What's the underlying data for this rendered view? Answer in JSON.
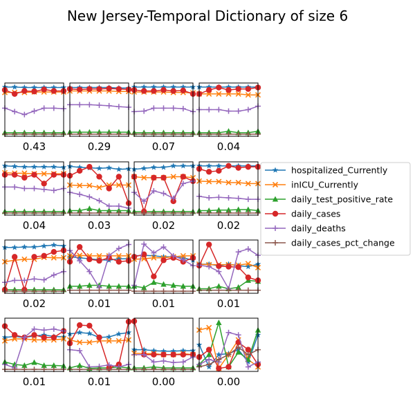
{
  "chart_data": {
    "type": "line",
    "title": "New Jersey-Temporal Dictionary of size 6",
    "series_styles": [
      {
        "name": "hospitalized_Currently",
        "color": "#1f77b4",
        "marker": "star"
      },
      {
        "name": "inICU_Currently",
        "color": "#ff7f0e",
        "marker": "x"
      },
      {
        "name": "daily_test_positive_rate",
        "color": "#2ca02c",
        "marker": "triangle"
      },
      {
        "name": "daily_cases",
        "color": "#d62728",
        "marker": "circle"
      },
      {
        "name": "daily_deaths",
        "color": "#9467bd",
        "marker": "plus"
      },
      {
        "name": "daily_cases_pct_change",
        "color": "#8c564b",
        "marker": "plus"
      }
    ],
    "legend": {
      "placement": "right",
      "entries": [
        "hospitalized_Currently",
        "inICU_Currently",
        "daily_test_positive_rate",
        "daily_cases",
        "daily_deaths",
        "daily_cases_pct_change"
      ]
    },
    "x": [
      0,
      1,
      2,
      3,
      4,
      5,
      6
    ],
    "ylim": [
      0,
      1
    ],
    "panels": [
      {
        "label": "0.43",
        "series": [
          [
            0.96,
            0.96,
            0.95,
            0.95,
            0.95,
            0.95,
            0.95
          ],
          [
            0.85,
            0.85,
            0.85,
            0.86,
            0.86,
            0.86,
            0.86
          ],
          [
            0.03,
            0.03,
            0.03,
            0.03,
            0.03,
            0.03,
            0.03
          ],
          [
            0.9,
            0.82,
            0.88,
            0.87,
            0.91,
            0.88,
            0.88
          ],
          [
            0.53,
            0.46,
            0.4,
            0.47,
            0.53,
            0.53,
            0.52
          ],
          [
            0.0,
            0.0,
            0.0,
            0.0,
            0.0,
            0.0,
            0.0
          ]
        ]
      },
      {
        "label": "0.29",
        "series": [
          [
            0.95,
            0.95,
            0.95,
            0.95,
            0.95,
            0.94,
            0.94
          ],
          [
            0.88,
            0.88,
            0.88,
            0.88,
            0.88,
            0.87,
            0.87
          ],
          [
            0.04,
            0.04,
            0.04,
            0.04,
            0.04,
            0.04,
            0.04
          ],
          [
            0.92,
            0.91,
            0.92,
            0.92,
            0.93,
            0.92,
            0.91
          ],
          [
            0.6,
            0.6,
            0.6,
            0.59,
            0.58,
            0.56,
            0.55
          ],
          [
            0.0,
            0.0,
            0.0,
            0.0,
            0.0,
            0.0,
            0.0
          ]
        ]
      },
      {
        "label": "0.07",
        "series": [
          [
            0.96,
            0.96,
            0.96,
            0.96,
            0.96,
            0.96,
            0.96
          ],
          [
            0.86,
            0.86,
            0.86,
            0.86,
            0.85,
            0.85,
            0.84
          ],
          [
            0.03,
            0.03,
            0.03,
            0.03,
            0.03,
            0.03,
            0.03
          ],
          [
            0.9,
            0.88,
            0.88,
            0.9,
            0.88,
            0.89,
            0.82
          ],
          [
            0.46,
            0.47,
            0.53,
            0.53,
            0.53,
            0.52,
            0.46
          ],
          [
            0.0,
            0.0,
            0.0,
            0.0,
            0.0,
            0.0,
            0.0
          ]
        ]
      },
      {
        "label": "0.04",
        "series": [
          [
            0.96,
            0.96,
            0.96,
            0.96,
            0.96,
            0.96,
            0.96
          ],
          [
            0.82,
            0.82,
            0.82,
            0.82,
            0.82,
            0.8,
            0.8
          ],
          [
            0.03,
            0.03,
            0.03,
            0.06,
            0.03,
            0.03,
            0.06
          ],
          [
            0.82,
            0.9,
            0.95,
            0.9,
            0.92,
            0.92,
            0.95
          ],
          [
            0.5,
            0.5,
            0.5,
            0.47,
            0.47,
            0.5,
            0.57
          ],
          [
            0.0,
            0.0,
            0.0,
            0.0,
            0.0,
            0.0,
            0.0
          ]
        ]
      },
      {
        "label": "0.04",
        "series": [
          [
            0.96,
            0.95,
            0.94,
            0.94,
            0.94,
            0.94,
            0.93
          ],
          [
            0.82,
            0.81,
            0.81,
            0.8,
            0.8,
            0.8,
            0.8
          ],
          [
            0.03,
            0.03,
            0.03,
            0.03,
            0.03,
            0.03,
            0.03
          ],
          [
            0.78,
            0.78,
            0.72,
            0.78,
            0.6,
            0.78,
            0.78
          ],
          [
            0.53,
            0.53,
            0.5,
            0.5,
            0.48,
            0.46,
            0.5
          ],
          [
            0.0,
            0.0,
            0.0,
            0.0,
            0.0,
            0.0,
            0.0
          ]
        ]
      },
      {
        "label": "0.03",
        "series": [
          [
            0.95,
            0.93,
            0.92,
            0.91,
            0.92,
            0.89,
            0.9
          ],
          [
            0.57,
            0.56,
            0.56,
            0.52,
            0.57,
            0.57,
            0.57
          ],
          [
            0.05,
            0.05,
            0.09,
            0.05,
            0.05,
            0.05,
            0.05
          ],
          [
            0.76,
            0.86,
            0.94,
            0.74,
            0.5,
            0.74,
            0.2
          ],
          [
            0.42,
            0.38,
            0.33,
            0.25,
            0.14,
            0.14,
            0.1
          ],
          [
            0.0,
            0.0,
            0.0,
            0.0,
            0.0,
            0.0,
            0.0
          ]
        ]
      },
      {
        "label": "0.02",
        "series": [
          [
            0.89,
            0.91,
            0.93,
            0.93,
            0.96,
            0.96,
            0.96
          ],
          [
            0.74,
            0.72,
            0.72,
            0.72,
            0.74,
            0.74,
            0.72
          ],
          [
            0.03,
            0.03,
            0.03,
            0.03,
            0.03,
            0.03,
            0.03
          ],
          [
            0.74,
            0.03,
            0.72,
            0.72,
            0.24,
            0.74,
            0.65
          ],
          [
            0.42,
            0.24,
            0.45,
            0.4,
            0.3,
            0.6,
            0.65
          ],
          [
            0.0,
            0.0,
            0.0,
            0.0,
            0.0,
            0.0,
            0.0
          ]
        ]
      },
      {
        "label": "0.02",
        "series": [
          [
            0.96,
            0.96,
            0.96,
            0.96,
            0.96,
            0.96,
            0.96
          ],
          [
            0.65,
            0.64,
            0.64,
            0.62,
            0.62,
            0.6,
            0.6
          ],
          [
            0.05,
            0.05,
            0.06,
            0.06,
            0.07,
            0.07,
            0.05
          ],
          [
            0.9,
            0.84,
            0.86,
            0.96,
            0.92,
            0.94,
            0.94
          ],
          [
            0.34,
            0.31,
            0.32,
            0.31,
            0.3,
            0.28,
            0.28
          ],
          [
            0.0,
            0.0,
            0.0,
            0.0,
            0.0,
            0.0,
            0.0
          ]
        ]
      },
      {
        "label": "0.02",
        "series": [
          [
            0.89,
            0.89,
            0.9,
            0.9,
            0.92,
            0.94,
            0.92
          ],
          [
            0.6,
            0.63,
            0.65,
            0.65,
            0.69,
            0.68,
            0.68
          ],
          [
            0.03,
            0.03,
            0.03,
            0.03,
            0.03,
            0.03,
            0.03
          ],
          [
            0.03,
            0.7,
            0.03,
            0.7,
            0.72,
            0.8,
            0.83
          ],
          [
            0.18,
            0.22,
            0.22,
            0.25,
            0.23,
            0.33,
            0.4
          ],
          [
            0.0,
            0.0,
            0.0,
            0.0,
            0.0,
            0.0,
            0.0
          ]
        ]
      },
      {
        "label": "0.01",
        "series": [
          [
            0.7,
            0.68,
            0.66,
            0.64,
            0.63,
            0.66,
            0.66
          ],
          [
            0.72,
            0.73,
            0.72,
            0.72,
            0.72,
            0.72,
            0.72
          ],
          [
            0.1,
            0.1,
            0.12,
            0.12,
            0.1,
            0.1,
            0.1
          ],
          [
            0.6,
            0.9,
            0.65,
            0.62,
            0.68,
            0.6,
            0.62
          ],
          [
            0.83,
            0.62,
            0.4,
            0.07,
            0.73,
            0.87,
            0.95
          ],
          [
            0.02,
            0.02,
            0.02,
            0.02,
            0.02,
            0.02,
            0.02
          ]
        ]
      },
      {
        "label": "0.01",
        "series": [
          [
            0.72,
            0.73,
            0.72,
            0.7,
            0.7,
            0.68,
            0.63
          ],
          [
            0.65,
            0.66,
            0.68,
            0.68,
            0.7,
            0.72,
            0.72
          ],
          [
            0.1,
            0.07,
            0.18,
            0.14,
            0.12,
            0.1,
            0.1
          ],
          [
            0.7,
            0.75,
            0.3,
            0.63,
            0.68,
            0.6,
            0.68
          ],
          [
            0.12,
            0.96,
            0.78,
            0.9,
            0.72,
            0.64,
            0.52
          ],
          [
            0.0,
            0.0,
            0.0,
            0.0,
            0.0,
            0.0,
            0.0
          ]
        ]
      },
      {
        "label": "0.01",
        "series": [
          [
            0.55,
            0.55,
            0.52,
            0.55,
            0.52,
            0.5,
            0.55
          ],
          [
            0.55,
            0.54,
            0.54,
            0.54,
            0.53,
            0.56,
            0.48
          ],
          [
            0.05,
            0.05,
            0.1,
            0.05,
            0.08,
            0.22,
            0.2
          ],
          [
            0.52,
            0.95,
            0.51,
            0.5,
            0.49,
            0.28,
            0.22
          ],
          [
            0.53,
            0.5,
            0.4,
            0.05,
            0.8,
            0.86,
            0.73
          ],
          [
            0.02,
            0.02,
            0.02,
            0.02,
            0.02,
            0.02,
            0.02
          ]
        ]
      },
      {
        "label": "0.01",
        "series": [
          [
            0.65,
            0.67,
            0.65,
            0.68,
            0.7,
            0.67,
            0.66
          ],
          [
            0.58,
            0.62,
            0.62,
            0.6,
            0.6,
            0.6,
            0.62
          ],
          [
            0.15,
            0.1,
            0.08,
            0.14,
            0.08,
            0.08,
            0.07
          ],
          [
            0.88,
            0.7,
            0.65,
            0.7,
            0.65,
            0.65,
            0.78
          ],
          [
            0.1,
            0.03,
            0.65,
            0.82,
            0.8,
            0.82,
            0.78
          ],
          [
            0.0,
            0.0,
            0.0,
            0.0,
            0.0,
            0.0,
            0.0
          ]
        ]
      },
      {
        "label": "0.01",
        "series": [
          [
            0.72,
            0.75,
            0.73,
            0.65,
            0.66,
            0.72,
            0.75
          ],
          [
            0.6,
            0.55,
            0.55,
            0.58,
            0.58,
            0.58,
            0.6
          ],
          [
            0.03,
            0.08,
            0.02,
            0.03,
            0.03,
            0.05,
            0.03
          ],
          [
            0.53,
            0.9,
            0.89,
            0.65,
            0.03,
            0.1,
            0.97
          ],
          [
            0.4,
            0.38,
            0.05,
            0.06,
            0.09,
            0.05,
            0.1
          ],
          [
            0.0,
            0.0,
            0.0,
            0.0,
            0.0,
            0.0,
            0.0
          ]
        ]
      },
      {
        "label": "0.00",
        "series": [
          [
            0.4,
            0.4,
            0.38,
            0.37,
            0.37,
            0.38,
            0.38
          ],
          [
            0.33,
            0.32,
            0.32,
            0.3,
            0.3,
            0.32,
            0.3
          ],
          [
            0.03,
            0.03,
            0.05,
            0.03,
            0.03,
            0.03,
            0.03
          ],
          [
            0.98,
            0.3,
            0.3,
            0.3,
            0.3,
            0.3,
            0.3
          ],
          [
            0.3,
            0.3,
            0.15,
            0.17,
            0.14,
            0.15,
            0.25
          ],
          [
            0.0,
            0.0,
            0.0,
            0.0,
            0.0,
            0.0,
            0.0
          ]
        ]
      },
      {
        "label": "0.00",
        "series": [
          [
            0.5,
            0.05,
            0.3,
            0.32,
            0.4,
            0.15,
            0.7
          ],
          [
            0.8,
            0.85,
            0.02,
            0.3,
            0.6,
            0.2,
            0.05
          ],
          [
            0.1,
            0.3,
            0.95,
            0.05,
            0.35,
            0.2,
            0.8
          ],
          [
            0.25,
            0.4,
            0.02,
            0.05,
            0.55,
            0.4,
            0.1
          ],
          [
            0.1,
            0.2,
            0.15,
            0.75,
            0.7,
            0.05,
            0.15
          ],
          [
            0.05,
            0.1,
            0.2,
            0.3,
            0.45,
            0.3,
            0.4
          ]
        ]
      }
    ]
  }
}
